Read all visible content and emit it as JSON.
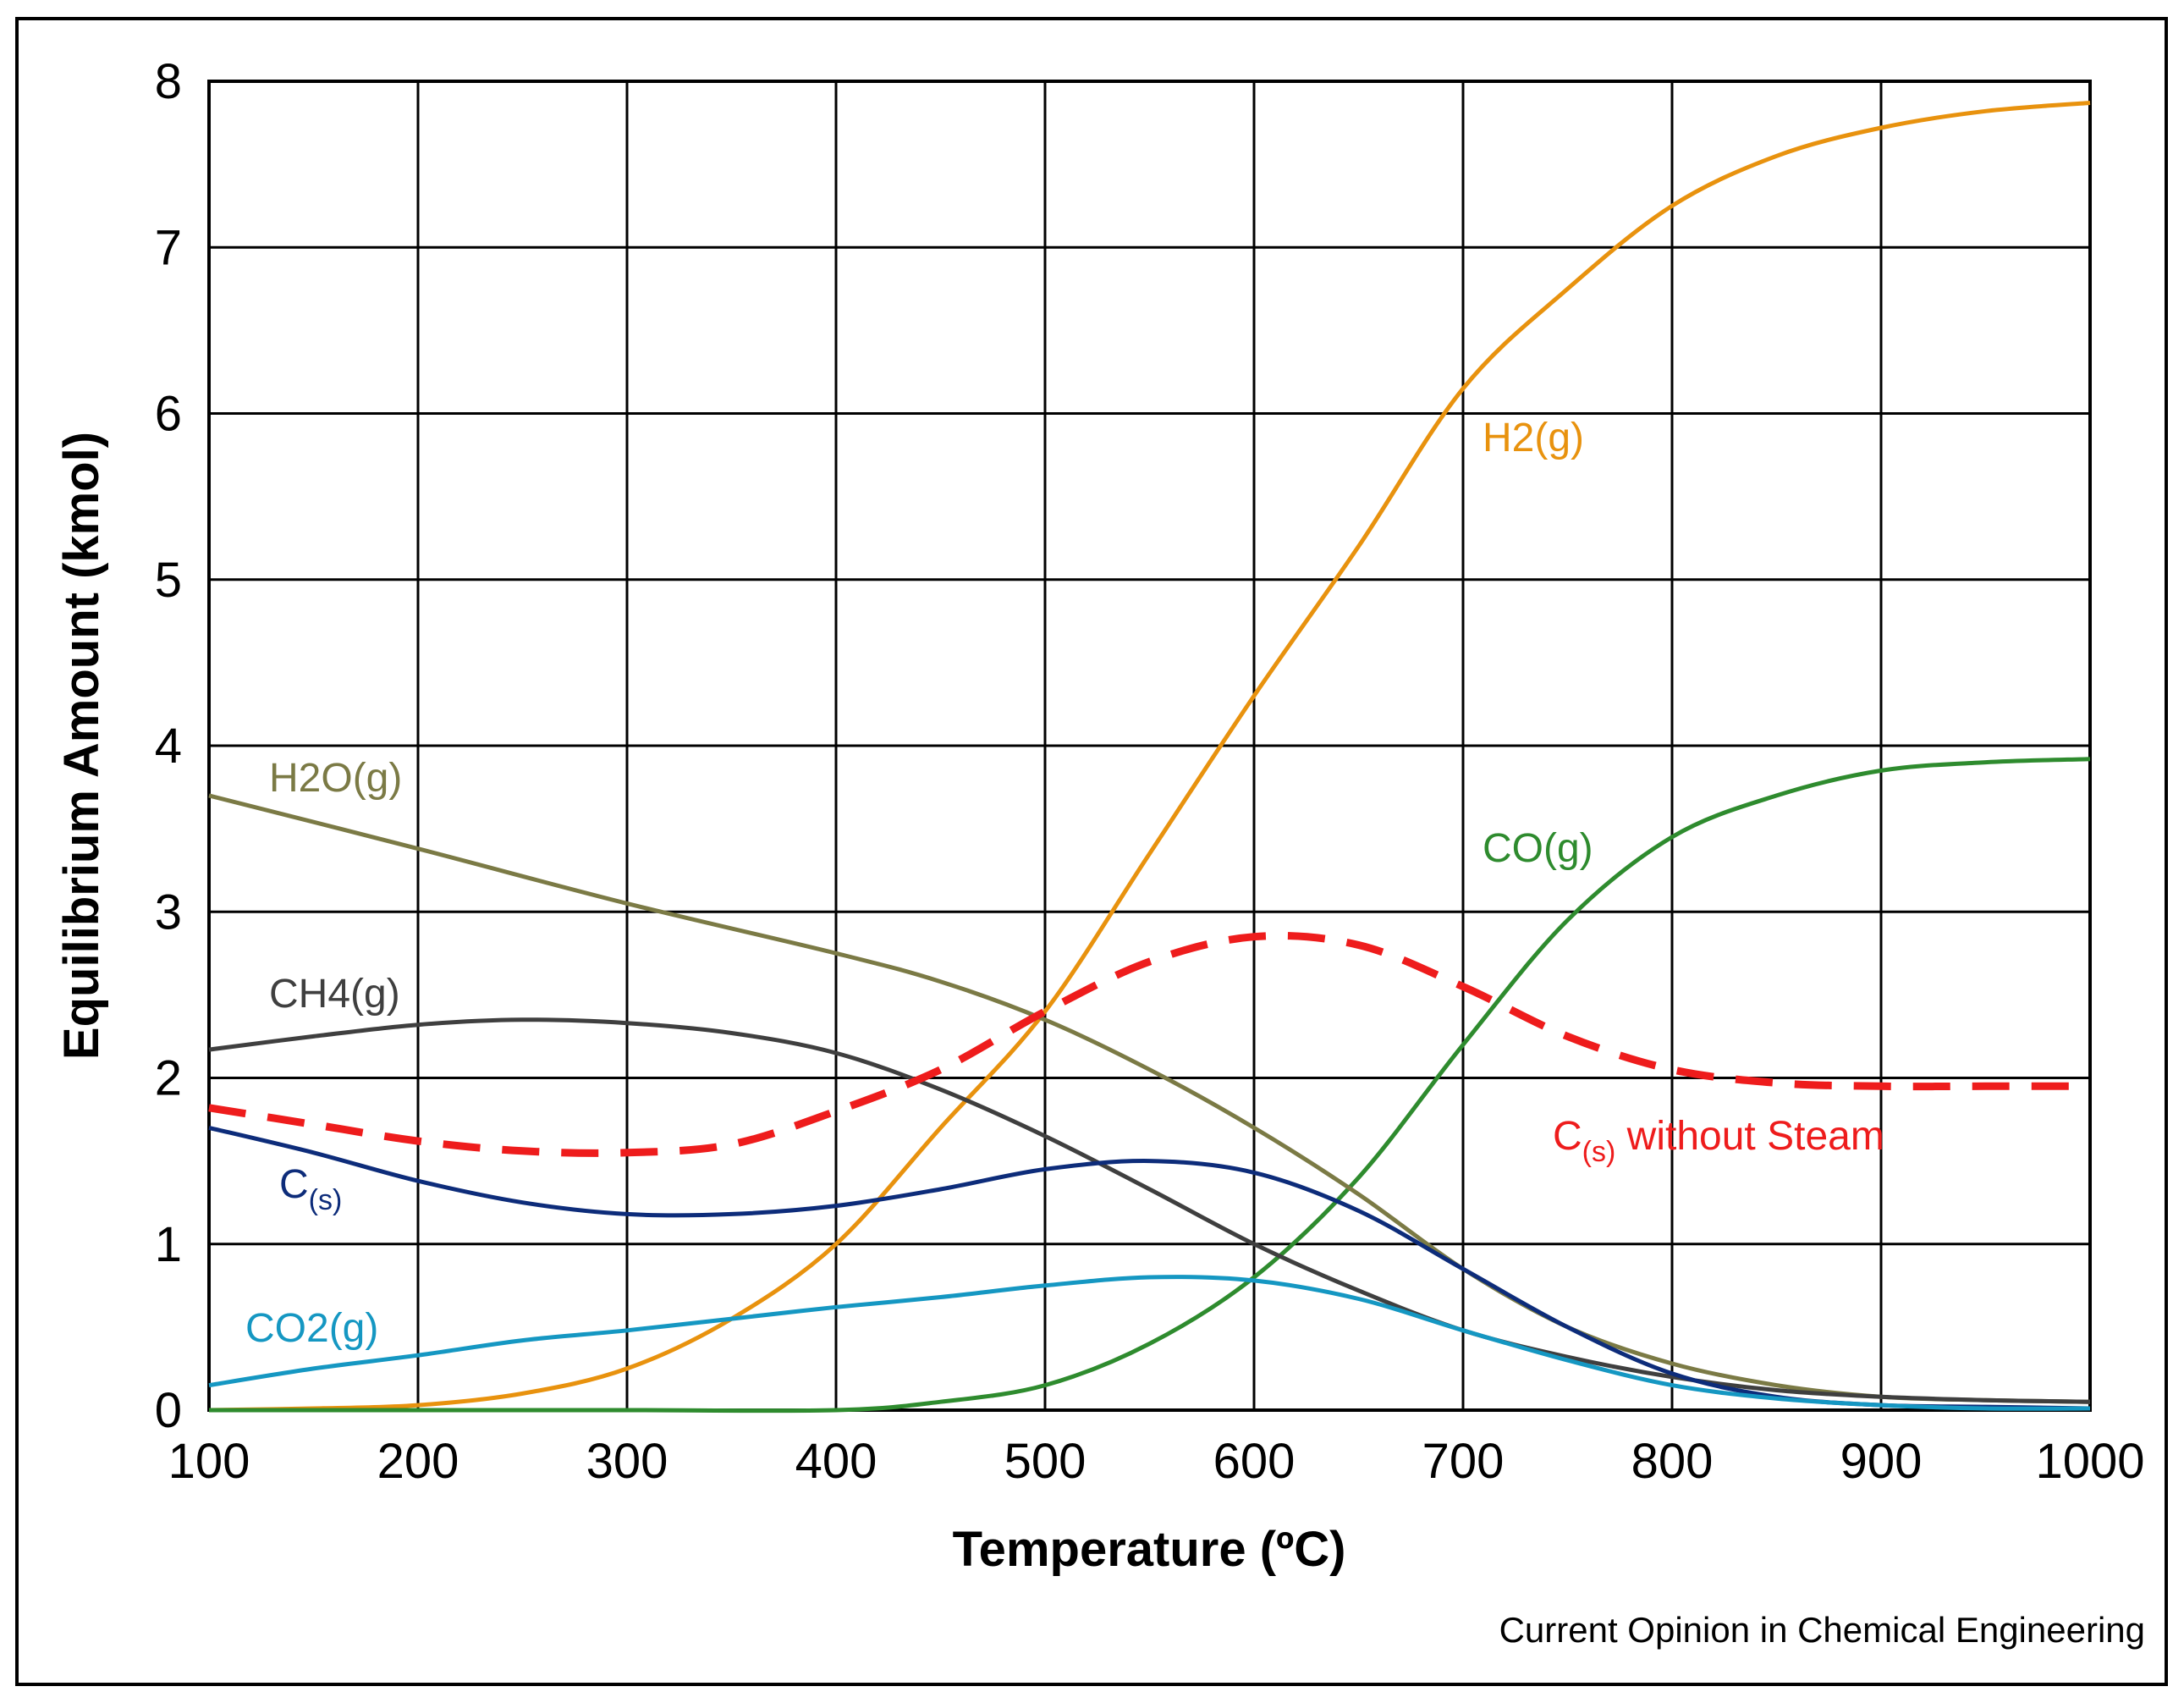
{
  "chart_data": {
    "type": "line",
    "title": "",
    "xlabel": "Temperature (ºC)",
    "ylabel": "Equilibrium Amount (kmol)",
    "xlim": [
      100,
      1000
    ],
    "ylim": [
      0,
      8
    ],
    "xticks": [
      100,
      200,
      300,
      400,
      500,
      600,
      700,
      800,
      900,
      1000
    ],
    "yticks": [
      0,
      1,
      2,
      3,
      4,
      5,
      6,
      7,
      8
    ],
    "grid": true,
    "series": [
      {
        "name": "H2(g)",
        "label_main": "H2(g)",
        "label_sub": "",
        "label_rest": "",
        "color": "#E8920E",
        "dashed": false,
        "x": [
          100,
          150,
          200,
          250,
          300,
          350,
          400,
          450,
          500,
          550,
          600,
          650,
          700,
          750,
          800,
          850,
          900,
          950,
          1000
        ],
        "y": [
          0.0,
          0.01,
          0.03,
          0.1,
          0.25,
          0.55,
          1.0,
          1.7,
          2.4,
          3.35,
          4.3,
          5.2,
          6.15,
          6.75,
          7.25,
          7.55,
          7.72,
          7.82,
          7.87
        ]
      },
      {
        "name": "CO(g)",
        "label_main": "CO(g)",
        "label_sub": "",
        "label_rest": "",
        "color": "#2E8B2E",
        "dashed": false,
        "x": [
          100,
          200,
          300,
          400,
          450,
          500,
          550,
          600,
          650,
          700,
          750,
          800,
          850,
          900,
          950,
          1000
        ],
        "y": [
          0.0,
          0.0,
          0.0,
          0.0,
          0.05,
          0.15,
          0.4,
          0.8,
          1.4,
          2.2,
          2.95,
          3.45,
          3.7,
          3.85,
          3.9,
          3.92
        ]
      },
      {
        "name": "H2O(g)",
        "label_main": "H2O(g)",
        "label_sub": "",
        "label_rest": "",
        "color": "#7B7A45",
        "dashed": false,
        "x": [
          100,
          200,
          300,
          400,
          450,
          500,
          550,
          600,
          650,
          700,
          750,
          800,
          850,
          900,
          950,
          1000
        ],
        "y": [
          3.7,
          3.38,
          3.05,
          2.75,
          2.58,
          2.35,
          2.05,
          1.7,
          1.3,
          0.85,
          0.5,
          0.28,
          0.15,
          0.08,
          0.06,
          0.05
        ]
      },
      {
        "name": "CH4(g)",
        "label_main": "CH4(g)",
        "label_sub": "",
        "label_rest": "",
        "color": "#3F3F3F",
        "dashed": false,
        "x": [
          100,
          150,
          200,
          250,
          300,
          350,
          400,
          450,
          500,
          550,
          600,
          650,
          700,
          750,
          800,
          850,
          900,
          950,
          1000
        ],
        "y": [
          2.17,
          2.25,
          2.32,
          2.35,
          2.33,
          2.27,
          2.15,
          1.93,
          1.65,
          1.33,
          1.0,
          0.72,
          0.48,
          0.32,
          0.2,
          0.12,
          0.08,
          0.06,
          0.05
        ]
      },
      {
        "name": "C(s)",
        "label_main": "C",
        "label_sub": "(s)",
        "label_rest": "",
        "color": "#0D2C7A",
        "dashed": false,
        "x": [
          100,
          150,
          200,
          250,
          300,
          350,
          400,
          450,
          500,
          550,
          600,
          650,
          700,
          750,
          800,
          850,
          900,
          950,
          1000
        ],
        "y": [
          1.7,
          1.55,
          1.38,
          1.25,
          1.18,
          1.18,
          1.23,
          1.33,
          1.45,
          1.5,
          1.43,
          1.2,
          0.85,
          0.5,
          0.22,
          0.08,
          0.03,
          0.02,
          0.01
        ]
      },
      {
        "name": "CO2(g)",
        "label_main": "CO2(g)",
        "label_sub": "",
        "label_rest": "",
        "color": "#1597C2",
        "dashed": false,
        "x": [
          100,
          150,
          200,
          250,
          300,
          350,
          400,
          450,
          500,
          550,
          600,
          650,
          700,
          750,
          800,
          850,
          900,
          950,
          1000
        ],
        "y": [
          0.15,
          0.25,
          0.33,
          0.42,
          0.48,
          0.55,
          0.62,
          0.68,
          0.75,
          0.8,
          0.78,
          0.67,
          0.48,
          0.3,
          0.15,
          0.07,
          0.03,
          0.01,
          0.01
        ]
      },
      {
        "name": "C(s) without Steam",
        "label_main": "C",
        "label_sub": "(s)",
        "label_rest": " without Steam",
        "color": "#EE1C1C",
        "dashed": true,
        "x": [
          100,
          150,
          200,
          250,
          300,
          350,
          400,
          450,
          500,
          550,
          600,
          650,
          700,
          750,
          800,
          850,
          900,
          950,
          1000
        ],
        "y": [
          1.82,
          1.72,
          1.62,
          1.56,
          1.55,
          1.6,
          1.8,
          2.05,
          2.4,
          2.7,
          2.85,
          2.8,
          2.55,
          2.25,
          2.05,
          1.97,
          1.95,
          1.95,
          1.95
        ]
      }
    ],
    "source": "Current Opinion in Chemical Engineering"
  }
}
